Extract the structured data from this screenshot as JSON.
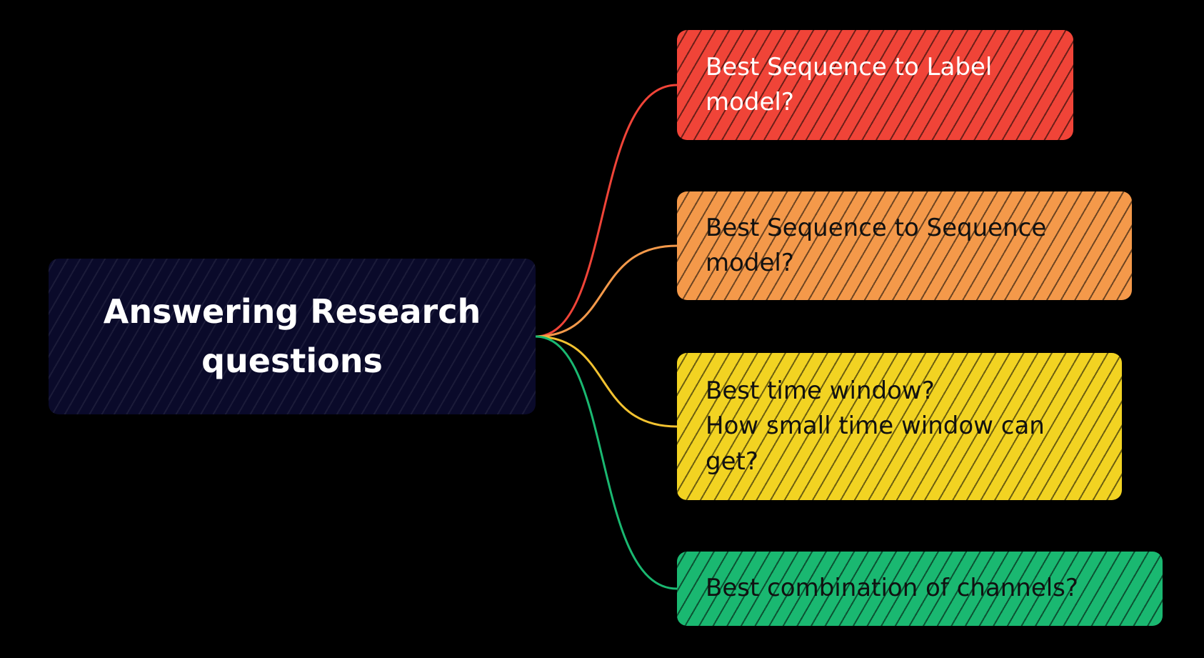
{
  "mindmap": {
    "root": {
      "label": "Answering Research\nquestions",
      "fill": "#0a0a2a",
      "text_color": "#ffffff"
    },
    "branches": [
      {
        "label": "Best Sequence to Label\nmodel?",
        "fill": "#f04438",
        "text_color": "#ffffff",
        "line_color": "#f04438"
      },
      {
        "label": "Best Sequence to Sequence\nmodel?",
        "fill": "#f4994a",
        "text_color": "#111111",
        "line_color": "#f4994a"
      },
      {
        "label": "Best time window?\nHow small time window can\nget?",
        "fill": "#f2d322",
        "text_color": "#111111",
        "line_color": "#f2c230"
      },
      {
        "label": "Best combination of channels?",
        "fill": "#1ab871",
        "text_color": "#111111",
        "line_color": "#1ab871"
      }
    ]
  }
}
